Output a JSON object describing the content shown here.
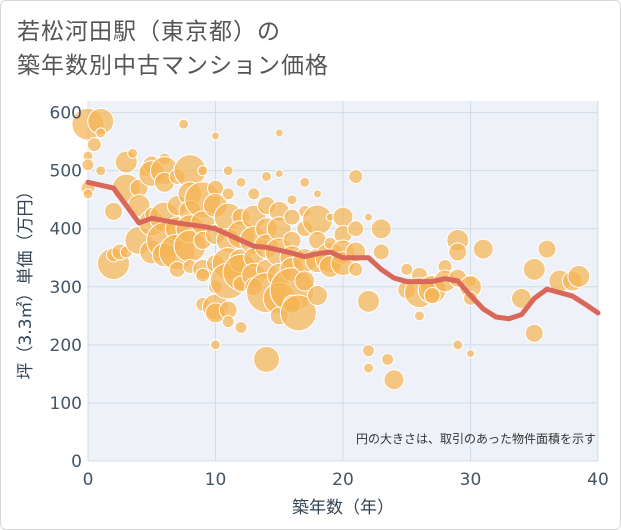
{
  "title_lines": [
    "若松河田駅（東京都）の",
    "築年数別中古マンション価格"
  ],
  "chart_data": {
    "type": "scatter",
    "xlabel": "築年数（年）",
    "ylabel": "坪（3.3㎡）単価（万円）",
    "xlim": [
      0,
      40
    ],
    "ylim": [
      0,
      620
    ],
    "xticks": [
      0,
      10,
      20,
      30,
      40
    ],
    "yticks": [
      0,
      100,
      200,
      300,
      400,
      500,
      600
    ],
    "grid": true,
    "annotation": "円の大きさは、取引のあった物件面積を示す",
    "colors": {
      "bubble": "#f5b455",
      "bubble_edge": "#ffffff",
      "line": "#d9675a",
      "grid": "#d0dce8",
      "plot_bg": "#eef2f8"
    },
    "points": [
      {
        "x": 0,
        "y": 580,
        "s": 16
      },
      {
        "x": 0,
        "y": 525,
        "s": 5
      },
      {
        "x": 0,
        "y": 510,
        "s": 6
      },
      {
        "x": 0,
        "y": 470,
        "s": 7
      },
      {
        "x": 0,
        "y": 460,
        "s": 5
      },
      {
        "x": 0.5,
        "y": 545,
        "s": 7
      },
      {
        "x": 1,
        "y": 585,
        "s": 13
      },
      {
        "x": 1,
        "y": 565,
        "s": 5
      },
      {
        "x": 1,
        "y": 500,
        "s": 5
      },
      {
        "x": 2,
        "y": 430,
        "s": 9
      },
      {
        "x": 2,
        "y": 340,
        "s": 16
      },
      {
        "x": 2,
        "y": 355,
        "s": 7
      },
      {
        "x": 2.5,
        "y": 360,
        "s": 8
      },
      {
        "x": 3,
        "y": 515,
        "s": 11
      },
      {
        "x": 3,
        "y": 470,
        "s": 14
      },
      {
        "x": 3,
        "y": 360,
        "s": 6
      },
      {
        "x": 3.5,
        "y": 530,
        "s": 5
      },
      {
        "x": 4,
        "y": 470,
        "s": 9
      },
      {
        "x": 4,
        "y": 440,
        "s": 11
      },
      {
        "x": 4,
        "y": 380,
        "s": 14
      },
      {
        "x": 4.5,
        "y": 500,
        "s": 6
      },
      {
        "x": 5,
        "y": 510,
        "s": 9
      },
      {
        "x": 5,
        "y": 495,
        "s": 13
      },
      {
        "x": 5,
        "y": 410,
        "s": 13
      },
      {
        "x": 5,
        "y": 360,
        "s": 12
      },
      {
        "x": 5,
        "y": 425,
        "s": 7
      },
      {
        "x": 6,
        "y": 520,
        "s": 6
      },
      {
        "x": 6,
        "y": 500,
        "s": 14
      },
      {
        "x": 6,
        "y": 480,
        "s": 10
      },
      {
        "x": 6,
        "y": 420,
        "s": 15
      },
      {
        "x": 6,
        "y": 380,
        "s": 18
      },
      {
        "x": 6,
        "y": 355,
        "s": 12
      },
      {
        "x": 7,
        "y": 490,
        "s": 8
      },
      {
        "x": 7,
        "y": 440,
        "s": 10
      },
      {
        "x": 7,
        "y": 400,
        "s": 12
      },
      {
        "x": 7,
        "y": 360,
        "s": 18
      },
      {
        "x": 7,
        "y": 330,
        "s": 8
      },
      {
        "x": 7.5,
        "y": 580,
        "s": 5
      },
      {
        "x": 8,
        "y": 500,
        "s": 16
      },
      {
        "x": 8,
        "y": 460,
        "s": 12
      },
      {
        "x": 8,
        "y": 430,
        "s": 11
      },
      {
        "x": 8,
        "y": 400,
        "s": 14
      },
      {
        "x": 8,
        "y": 370,
        "s": 16
      },
      {
        "x": 8,
        "y": 335,
        "s": 7
      },
      {
        "x": 9,
        "y": 450,
        "s": 18
      },
      {
        "x": 9,
        "y": 410,
        "s": 12
      },
      {
        "x": 9,
        "y": 380,
        "s": 9
      },
      {
        "x": 9,
        "y": 330,
        "s": 10
      },
      {
        "x": 9,
        "y": 320,
        "s": 7
      },
      {
        "x": 9,
        "y": 270,
        "s": 7
      },
      {
        "x": 9,
        "y": 500,
        "s": 5
      },
      {
        "x": 10,
        "y": 560,
        "s": 4
      },
      {
        "x": 10,
        "y": 470,
        "s": 8
      },
      {
        "x": 10,
        "y": 440,
        "s": 12
      },
      {
        "x": 10,
        "y": 390,
        "s": 10
      },
      {
        "x": 10,
        "y": 340,
        "s": 9
      },
      {
        "x": 10,
        "y": 300,
        "s": 7
      },
      {
        "x": 10,
        "y": 265,
        "s": 13
      },
      {
        "x": 10,
        "y": 255,
        "s": 10
      },
      {
        "x": 10,
        "y": 200,
        "s": 5
      },
      {
        "x": 11,
        "y": 500,
        "s": 5
      },
      {
        "x": 11,
        "y": 460,
        "s": 6
      },
      {
        "x": 11,
        "y": 420,
        "s": 14
      },
      {
        "x": 11,
        "y": 380,
        "s": 12
      },
      {
        "x": 11,
        "y": 340,
        "s": 16
      },
      {
        "x": 11,
        "y": 310,
        "s": 18
      },
      {
        "x": 11,
        "y": 260,
        "s": 9
      },
      {
        "x": 11,
        "y": 240,
        "s": 6
      },
      {
        "x": 12,
        "y": 480,
        "s": 5
      },
      {
        "x": 12,
        "y": 420,
        "s": 9
      },
      {
        "x": 12,
        "y": 390,
        "s": 14
      },
      {
        "x": 12,
        "y": 345,
        "s": 12
      },
      {
        "x": 12,
        "y": 325,
        "s": 18
      },
      {
        "x": 12,
        "y": 305,
        "s": 8
      },
      {
        "x": 12,
        "y": 230,
        "s": 6
      },
      {
        "x": 13,
        "y": 460,
        "s": 6
      },
      {
        "x": 13,
        "y": 420,
        "s": 12
      },
      {
        "x": 13,
        "y": 380,
        "s": 14
      },
      {
        "x": 13,
        "y": 350,
        "s": 10
      },
      {
        "x": 13,
        "y": 320,
        "s": 12
      },
      {
        "x": 13,
        "y": 300,
        "s": 9
      },
      {
        "x": 14,
        "y": 490,
        "s": 5
      },
      {
        "x": 14,
        "y": 440,
        "s": 9
      },
      {
        "x": 14,
        "y": 400,
        "s": 11
      },
      {
        "x": 14,
        "y": 370,
        "s": 12
      },
      {
        "x": 14,
        "y": 330,
        "s": 10
      },
      {
        "x": 14,
        "y": 290,
        "s": 20
      },
      {
        "x": 14,
        "y": 175,
        "s": 13
      },
      {
        "x": 15,
        "y": 565,
        "s": 4
      },
      {
        "x": 15,
        "y": 495,
        "s": 4
      },
      {
        "x": 15,
        "y": 430,
        "s": 10
      },
      {
        "x": 15,
        "y": 400,
        "s": 12
      },
      {
        "x": 15,
        "y": 360,
        "s": 14
      },
      {
        "x": 15,
        "y": 320,
        "s": 12
      },
      {
        "x": 15,
        "y": 280,
        "s": 16
      },
      {
        "x": 15,
        "y": 250,
        "s": 9
      },
      {
        "x": 16,
        "y": 450,
        "s": 5
      },
      {
        "x": 16,
        "y": 420,
        "s": 8
      },
      {
        "x": 16,
        "y": 380,
        "s": 9
      },
      {
        "x": 16,
        "y": 350,
        "s": 12
      },
      {
        "x": 16,
        "y": 330,
        "s": 12
      },
      {
        "x": 16,
        "y": 295,
        "s": 22
      },
      {
        "x": 16,
        "y": 270,
        "s": 9
      },
      {
        "x": 16.5,
        "y": 255,
        "s": 18
      },
      {
        "x": 17,
        "y": 480,
        "s": 5
      },
      {
        "x": 17,
        "y": 430,
        "s": 6
      },
      {
        "x": 17,
        "y": 400,
        "s": 8
      },
      {
        "x": 17,
        "y": 345,
        "s": 12
      },
      {
        "x": 17,
        "y": 310,
        "s": 10
      },
      {
        "x": 18,
        "y": 460,
        "s": 4
      },
      {
        "x": 18,
        "y": 415,
        "s": 15
      },
      {
        "x": 18,
        "y": 380,
        "s": 9
      },
      {
        "x": 18,
        "y": 345,
        "s": 12
      },
      {
        "x": 18,
        "y": 285,
        "s": 10
      },
      {
        "x": 19,
        "y": 420,
        "s": 4
      },
      {
        "x": 19,
        "y": 350,
        "s": 15
      },
      {
        "x": 19,
        "y": 335,
        "s": 11
      },
      {
        "x": 19,
        "y": 375,
        "s": 6
      },
      {
        "x": 20,
        "y": 420,
        "s": 10
      },
      {
        "x": 20,
        "y": 390,
        "s": 9
      },
      {
        "x": 20,
        "y": 360,
        "s": 12
      },
      {
        "x": 20,
        "y": 340,
        "s": 12
      },
      {
        "x": 21,
        "y": 490,
        "s": 7
      },
      {
        "x": 21,
        "y": 400,
        "s": 8
      },
      {
        "x": 21,
        "y": 360,
        "s": 10
      },
      {
        "x": 21,
        "y": 330,
        "s": 7
      },
      {
        "x": 22,
        "y": 420,
        "s": 4
      },
      {
        "x": 22,
        "y": 275,
        "s": 11
      },
      {
        "x": 22,
        "y": 190,
        "s": 6
      },
      {
        "x": 22,
        "y": 160,
        "s": 5
      },
      {
        "x": 23,
        "y": 400,
        "s": 10
      },
      {
        "x": 23,
        "y": 360,
        "s": 8
      },
      {
        "x": 23.5,
        "y": 175,
        "s": 6
      },
      {
        "x": 24,
        "y": 140,
        "s": 10
      },
      {
        "x": 25,
        "y": 330,
        "s": 6
      },
      {
        "x": 25,
        "y": 295,
        "s": 9
      },
      {
        "x": 26,
        "y": 320,
        "s": 8
      },
      {
        "x": 26,
        "y": 290,
        "s": 15
      },
      {
        "x": 26,
        "y": 250,
        "s": 5
      },
      {
        "x": 27,
        "y": 300,
        "s": 12
      },
      {
        "x": 27,
        "y": 295,
        "s": 14
      },
      {
        "x": 27,
        "y": 285,
        "s": 8
      },
      {
        "x": 28,
        "y": 335,
        "s": 7
      },
      {
        "x": 28,
        "y": 310,
        "s": 11
      },
      {
        "x": 29,
        "y": 380,
        "s": 11
      },
      {
        "x": 29,
        "y": 360,
        "s": 9
      },
      {
        "x": 29,
        "y": 315,
        "s": 9
      },
      {
        "x": 29,
        "y": 200,
        "s": 5
      },
      {
        "x": 30,
        "y": 310,
        "s": 6
      },
      {
        "x": 30,
        "y": 300,
        "s": 11
      },
      {
        "x": 30,
        "y": 280,
        "s": 7
      },
      {
        "x": 30,
        "y": 185,
        "s": 4
      },
      {
        "x": 31,
        "y": 365,
        "s": 10
      },
      {
        "x": 34,
        "y": 280,
        "s": 10
      },
      {
        "x": 35,
        "y": 330,
        "s": 11
      },
      {
        "x": 35,
        "y": 220,
        "s": 9
      },
      {
        "x": 36,
        "y": 365,
        "s": 9
      },
      {
        "x": 37,
        "y": 310,
        "s": 11
      },
      {
        "x": 38,
        "y": 310,
        "s": 10
      },
      {
        "x": 38.5,
        "y": 318,
        "s": 11
      }
    ],
    "trend": {
      "x": [
        0,
        2,
        4,
        5,
        7,
        9,
        10,
        11,
        12,
        13,
        14,
        15,
        16,
        17,
        18,
        19,
        20,
        21,
        22,
        23,
        24,
        25,
        26,
        27,
        28,
        29,
        30,
        31,
        32,
        33,
        34,
        35,
        36,
        37,
        38,
        39,
        40
      ],
      "y": [
        480,
        470,
        410,
        418,
        410,
        404,
        400,
        390,
        380,
        370,
        368,
        363,
        358,
        352,
        357,
        360,
        350,
        350,
        350,
        330,
        315,
        309,
        309,
        309,
        314,
        310,
        285,
        262,
        248,
        245,
        252,
        280,
        296,
        290,
        284,
        270,
        255
      ]
    }
  }
}
